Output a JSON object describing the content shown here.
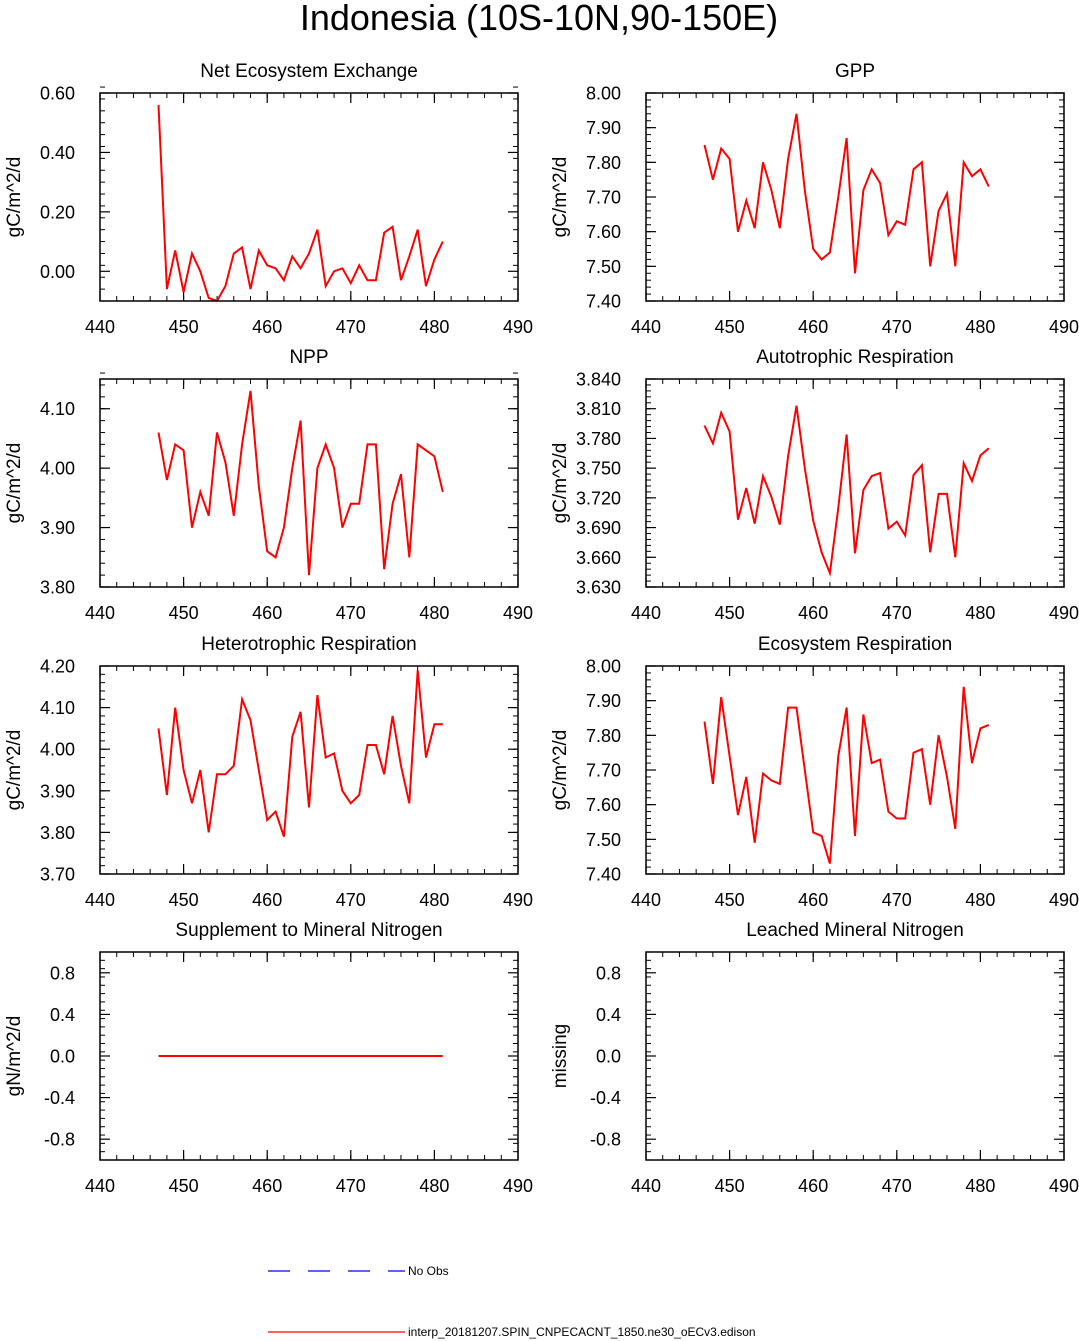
{
  "figure_title": "Indonesia (10S-10N,90-150E)",
  "colors": {
    "model": "#ff0000",
    "obs": "#0000ff",
    "axis": "#000000"
  },
  "legend": {
    "obs_label": "No Obs",
    "model_label": "interp_20181207.SPIN_CNPECACNT_1850.ne30_oECv3.edison"
  },
  "chart_data": [
    {
      "type": "line",
      "title": "Net Ecosystem Exchange",
      "ylabel": "gC/m^2/d",
      "xlim": [
        440,
        490
      ],
      "xticks": [
        440,
        450,
        460,
        470,
        480,
        490
      ],
      "ylim": [
        -0.1,
        0.6
      ],
      "yticks": [
        "0.00",
        "0.20",
        "0.40",
        "0.60"
      ],
      "yminor": 0.04,
      "x": [
        447,
        448,
        449,
        450,
        451,
        452,
        453,
        454,
        455,
        456,
        457,
        458,
        459,
        460,
        461,
        462,
        463,
        464,
        465,
        466,
        467,
        468,
        469,
        470,
        471,
        472,
        473,
        474,
        475,
        476,
        477,
        478,
        479,
        480,
        481
      ],
      "series": [
        {
          "name": "model",
          "values": [
            0.56,
            -0.06,
            0.07,
            -0.07,
            0.06,
            0.0,
            -0.09,
            -0.1,
            -0.05,
            0.06,
            0.08,
            -0.06,
            0.07,
            0.02,
            0.01,
            -0.03,
            0.05,
            0.01,
            0.06,
            0.14,
            -0.05,
            0.0,
            0.01,
            -0.04,
            0.02,
            -0.03,
            -0.03,
            0.13,
            0.15,
            -0.03,
            0.05,
            0.14,
            -0.05,
            0.04,
            0.1
          ]
        }
      ]
    },
    {
      "type": "line",
      "title": "GPP",
      "ylabel": "gC/m^2/d",
      "xlim": [
        440,
        490
      ],
      "xticks": [
        440,
        450,
        460,
        470,
        480,
        490
      ],
      "ylim": [
        7.4,
        8.0
      ],
      "yticks": [
        "7.40",
        "7.50",
        "7.60",
        "7.70",
        "7.80",
        "7.90",
        "8.00"
      ],
      "yminor": 0.02,
      "x": [
        447,
        448,
        449,
        450,
        451,
        452,
        453,
        454,
        455,
        456,
        457,
        458,
        459,
        460,
        461,
        462,
        463,
        464,
        465,
        466,
        467,
        468,
        469,
        470,
        471,
        472,
        473,
        474,
        475,
        476,
        477,
        478,
        479,
        480,
        481
      ],
      "series": [
        {
          "name": "model",
          "values": [
            7.85,
            7.75,
            7.84,
            7.81,
            7.6,
            7.69,
            7.61,
            7.8,
            7.72,
            7.61,
            7.81,
            7.94,
            7.72,
            7.55,
            7.52,
            7.54,
            7.7,
            7.87,
            7.48,
            7.72,
            7.78,
            7.74,
            7.59,
            7.63,
            7.62,
            7.78,
            7.8,
            7.5,
            7.66,
            7.71,
            7.5,
            7.8,
            7.76,
            7.78,
            7.73
          ]
        }
      ]
    },
    {
      "type": "line",
      "title": "NPP",
      "ylabel": "gC/m^2/d",
      "xlim": [
        440,
        490
      ],
      "xticks": [
        440,
        450,
        460,
        470,
        480,
        490
      ],
      "ylim": [
        3.8,
        4.15
      ],
      "yticks": [
        "3.80",
        "3.90",
        "4.00",
        "4.10"
      ],
      "yminor": 0.02,
      "x": [
        447,
        448,
        449,
        450,
        451,
        452,
        453,
        454,
        455,
        456,
        457,
        458,
        459,
        460,
        461,
        462,
        463,
        464,
        465,
        466,
        467,
        468,
        469,
        470,
        471,
        472,
        473,
        474,
        475,
        476,
        477,
        478,
        479,
        480,
        481
      ],
      "series": [
        {
          "name": "model",
          "values": [
            4.06,
            3.98,
            4.04,
            4.03,
            3.9,
            3.96,
            3.92,
            4.06,
            4.01,
            3.92,
            4.04,
            4.13,
            3.97,
            3.86,
            3.85,
            3.9,
            4.0,
            4.08,
            3.82,
            4.0,
            4.04,
            4.0,
            3.9,
            3.94,
            3.94,
            4.04,
            4.04,
            3.83,
            3.94,
            3.99,
            3.85,
            4.04,
            4.03,
            4.02,
            3.96
          ]
        }
      ]
    },
    {
      "type": "line",
      "title": "Autotrophic Respiration",
      "ylabel": "gC/m^2/d",
      "xlim": [
        440,
        490
      ],
      "xticks": [
        440,
        450,
        460,
        470,
        480,
        490
      ],
      "ylim": [
        3.63,
        3.84
      ],
      "yticks": [
        "3.630",
        "3.660",
        "3.690",
        "3.720",
        "3.750",
        "3.780",
        "3.810",
        "3.840"
      ],
      "yminor": 0.006,
      "x": [
        447,
        448,
        449,
        450,
        451,
        452,
        453,
        454,
        455,
        456,
        457,
        458,
        459,
        460,
        461,
        462,
        463,
        464,
        465,
        466,
        467,
        468,
        469,
        470,
        471,
        472,
        473,
        474,
        475,
        476,
        477,
        478,
        479,
        480,
        481
      ],
      "series": [
        {
          "name": "model",
          "values": [
            3.793,
            3.775,
            3.806,
            3.787,
            3.698,
            3.73,
            3.694,
            3.742,
            3.721,
            3.693,
            3.762,
            3.813,
            3.75,
            3.697,
            3.665,
            3.644,
            3.71,
            3.784,
            3.664,
            3.728,
            3.742,
            3.745,
            3.689,
            3.696,
            3.682,
            3.743,
            3.753,
            3.665,
            3.724,
            3.724,
            3.66,
            3.755,
            3.737,
            3.763,
            3.77
          ]
        }
      ]
    },
    {
      "type": "line",
      "title": "Heterotrophic Respiration",
      "ylabel": "gC/m^2/d",
      "xlim": [
        440,
        490
      ],
      "xticks": [
        440,
        450,
        460,
        470,
        480,
        490
      ],
      "ylim": [
        3.7,
        4.2
      ],
      "yticks": [
        "3.70",
        "3.80",
        "3.90",
        "4.00",
        "4.10",
        "4.20"
      ],
      "yminor": 0.02,
      "x": [
        447,
        448,
        449,
        450,
        451,
        452,
        453,
        454,
        455,
        456,
        457,
        458,
        459,
        460,
        461,
        462,
        463,
        464,
        465,
        466,
        467,
        468,
        469,
        470,
        471,
        472,
        473,
        474,
        475,
        476,
        477,
        478,
        479,
        480,
        481
      ],
      "series": [
        {
          "name": "model",
          "values": [
            4.05,
            3.89,
            4.1,
            3.95,
            3.87,
            3.95,
            3.8,
            3.94,
            3.94,
            3.96,
            4.12,
            4.07,
            3.95,
            3.83,
            3.85,
            3.79,
            4.03,
            4.09,
            3.86,
            4.13,
            3.98,
            3.99,
            3.9,
            3.87,
            3.89,
            4.01,
            4.01,
            3.94,
            4.08,
            3.96,
            3.87,
            4.19,
            3.98,
            4.06,
            4.06
          ]
        }
      ]
    },
    {
      "type": "line",
      "title": "Ecosystem Respiration",
      "ylabel": "gC/m^2/d",
      "xlim": [
        440,
        490
      ],
      "xticks": [
        440,
        450,
        460,
        470,
        480,
        490
      ],
      "ylim": [
        7.4,
        8.0
      ],
      "yticks": [
        "7.40",
        "7.50",
        "7.60",
        "7.70",
        "7.80",
        "7.90",
        "8.00"
      ],
      "yminor": 0.02,
      "x": [
        447,
        448,
        449,
        450,
        451,
        452,
        453,
        454,
        455,
        456,
        457,
        458,
        459,
        460,
        461,
        462,
        463,
        464,
        465,
        466,
        467,
        468,
        469,
        470,
        471,
        472,
        473,
        474,
        475,
        476,
        477,
        478,
        479,
        480,
        481
      ],
      "series": [
        {
          "name": "model",
          "values": [
            7.84,
            7.66,
            7.91,
            7.74,
            7.57,
            7.68,
            7.49,
            7.69,
            7.67,
            7.66,
            7.88,
            7.88,
            7.7,
            7.52,
            7.51,
            7.43,
            7.74,
            7.88,
            7.51,
            7.86,
            7.72,
            7.73,
            7.58,
            7.56,
            7.56,
            7.75,
            7.76,
            7.6,
            7.8,
            7.68,
            7.53,
            7.94,
            7.72,
            7.82,
            7.83
          ]
        }
      ]
    },
    {
      "type": "line",
      "title": "Supplement to Mineral Nitrogen",
      "ylabel": "gN/m^2/d",
      "xlim": [
        440,
        490
      ],
      "xticks": [
        440,
        450,
        460,
        470,
        480,
        490
      ],
      "ylim": [
        -1.0,
        1.0
      ],
      "yticks": [
        "-0.8",
        "-0.4",
        "0.0",
        "0.4",
        "0.8"
      ],
      "yminor": 0.08,
      "x": [
        447,
        481
      ],
      "series": [
        {
          "name": "model",
          "values": [
            0.0,
            0.0
          ]
        }
      ]
    },
    {
      "type": "line",
      "title": "Leached Mineral Nitrogen",
      "ylabel": "missing",
      "xlim": [
        440,
        490
      ],
      "xticks": [
        440,
        450,
        460,
        470,
        480,
        490
      ],
      "ylim": [
        -1.0,
        1.0
      ],
      "yticks": [
        "-0.8",
        "-0.4",
        "0.0",
        "0.4",
        "0.8"
      ],
      "yminor": 0.08,
      "x": [],
      "series": []
    }
  ]
}
